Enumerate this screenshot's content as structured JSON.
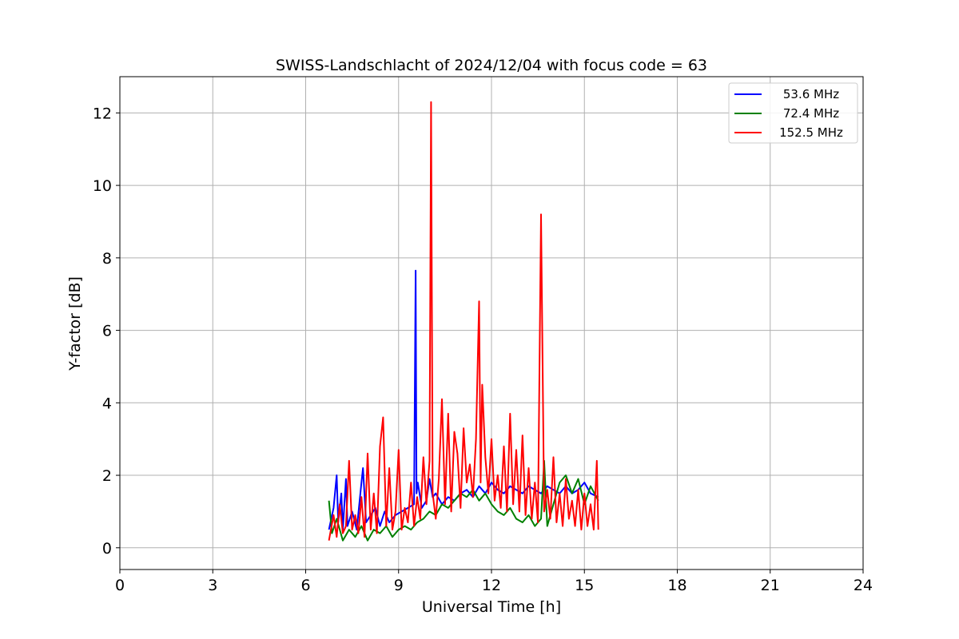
{
  "chart_data": {
    "type": "line",
    "title": "SWISS-Landschlacht of 2024/12/04 with focus code = 63",
    "xlabel": "Universal Time [h]",
    "ylabel": "Y-factor [dB]",
    "xlim": [
      0,
      24
    ],
    "ylim": [
      -0.6,
      13
    ],
    "xticks": [
      0,
      3,
      6,
      9,
      12,
      15,
      18,
      21,
      24
    ],
    "yticks": [
      0,
      2,
      4,
      6,
      8,
      10,
      12
    ],
    "grid": true,
    "legend_position": "top-right",
    "series": [
      {
        "name": "53.6 MHz",
        "color": "#0000ff",
        "x": [
          6.75,
          6.9,
          7.0,
          7.05,
          7.15,
          7.2,
          7.3,
          7.35,
          7.5,
          7.65,
          7.8,
          7.85,
          7.95,
          8.1,
          8.25,
          8.4,
          8.55,
          8.7,
          8.9,
          9.1,
          9.3,
          9.5,
          9.55,
          9.58,
          9.62,
          9.75,
          9.9,
          10.0,
          10.1,
          10.2,
          10.4,
          10.6,
          10.8,
          11.0,
          11.2,
          11.4,
          11.6,
          11.8,
          12.0,
          12.2,
          12.4,
          12.6,
          12.8,
          13.0,
          13.2,
          13.4,
          13.6,
          13.8,
          14.0,
          14.2,
          14.4,
          14.6,
          14.8,
          15.0,
          15.2,
          15.45
        ],
        "y": [
          0.5,
          1.1,
          2.0,
          0.7,
          1.5,
          0.5,
          1.9,
          0.6,
          1.0,
          0.5,
          1.8,
          2.2,
          0.7,
          0.9,
          1.1,
          0.6,
          1.0,
          0.7,
          0.9,
          1.0,
          1.1,
          1.2,
          7.65,
          1.5,
          1.8,
          1.1,
          1.3,
          1.9,
          1.4,
          1.5,
          1.2,
          1.4,
          1.3,
          1.5,
          1.6,
          1.4,
          1.7,
          1.5,
          1.8,
          1.6,
          1.5,
          1.7,
          1.6,
          1.5,
          1.7,
          1.6,
          1.5,
          1.7,
          1.6,
          1.5,
          1.7,
          1.5,
          1.6,
          1.8,
          1.5,
          1.4
        ]
      },
      {
        "name": "72.4 MHz",
        "color": "#008000",
        "x": [
          6.75,
          6.85,
          7.0,
          7.2,
          7.4,
          7.6,
          7.8,
          8.0,
          8.2,
          8.4,
          8.6,
          8.8,
          9.0,
          9.2,
          9.4,
          9.6,
          9.8,
          10.0,
          10.2,
          10.4,
          10.6,
          10.8,
          11.0,
          11.2,
          11.4,
          11.6,
          11.8,
          12.0,
          12.2,
          12.4,
          12.6,
          12.8,
          13.0,
          13.2,
          13.4,
          13.6,
          13.7,
          13.8,
          14.0,
          14.2,
          14.4,
          14.6,
          14.8,
          15.0,
          15.2,
          15.45
        ],
        "y": [
          1.3,
          0.4,
          0.8,
          0.2,
          0.5,
          0.3,
          0.6,
          0.2,
          0.5,
          0.4,
          0.6,
          0.3,
          0.5,
          0.6,
          0.5,
          0.7,
          0.8,
          1.0,
          0.9,
          1.2,
          1.1,
          1.3,
          1.5,
          1.4,
          1.6,
          1.3,
          1.5,
          1.2,
          1.0,
          0.9,
          1.1,
          0.8,
          0.7,
          0.9,
          0.6,
          0.8,
          2.4,
          0.6,
          1.2,
          1.8,
          2.0,
          1.5,
          1.9,
          1.2,
          1.7,
          1.3
        ]
      },
      {
        "name": "152.5 MHz",
        "color": "#ff0000",
        "x": [
          6.75,
          6.9,
          7.0,
          7.1,
          7.2,
          7.3,
          7.4,
          7.5,
          7.6,
          7.7,
          7.8,
          7.9,
          8.0,
          8.1,
          8.2,
          8.3,
          8.4,
          8.5,
          8.6,
          8.7,
          8.8,
          8.9,
          9.0,
          9.1,
          9.2,
          9.3,
          9.4,
          9.5,
          9.6,
          9.7,
          9.8,
          9.9,
          10.0,
          10.05,
          10.1,
          10.2,
          10.3,
          10.4,
          10.5,
          10.6,
          10.7,
          10.8,
          10.9,
          11.0,
          11.1,
          11.2,
          11.3,
          11.4,
          11.5,
          11.6,
          11.65,
          11.7,
          11.8,
          11.9,
          12.0,
          12.1,
          12.2,
          12.3,
          12.4,
          12.5,
          12.6,
          12.7,
          12.8,
          12.9,
          13.0,
          13.1,
          13.2,
          13.3,
          13.4,
          13.5,
          13.6,
          13.7,
          13.8,
          13.9,
          14.0,
          14.1,
          14.2,
          14.3,
          14.4,
          14.5,
          14.6,
          14.7,
          14.8,
          14.9,
          15.0,
          15.1,
          15.2,
          15.3,
          15.4,
          15.45
        ],
        "y": [
          0.2,
          0.9,
          0.3,
          1.2,
          0.4,
          0.6,
          2.4,
          0.5,
          0.9,
          0.4,
          1.4,
          0.3,
          2.6,
          0.5,
          1.5,
          0.4,
          2.8,
          3.6,
          0.6,
          2.2,
          0.5,
          1.0,
          2.7,
          0.5,
          1.1,
          0.7,
          1.8,
          0.6,
          1.4,
          0.8,
          2.5,
          1.2,
          2.4,
          12.3,
          1.5,
          0.8,
          1.9,
          4.1,
          1.2,
          3.7,
          1.0,
          3.2,
          2.6,
          1.1,
          3.3,
          1.8,
          2.3,
          1.4,
          3.0,
          6.8,
          1.8,
          4.5,
          2.5,
          1.5,
          3.0,
          1.3,
          2.0,
          1.1,
          2.8,
          1.0,
          3.7,
          1.2,
          2.7,
          1.0,
          3.1,
          0.9,
          2.2,
          0.8,
          1.8,
          0.7,
          9.2,
          1.0,
          1.6,
          0.8,
          2.5,
          0.7,
          1.5,
          0.6,
          1.9,
          0.8,
          1.3,
          0.6,
          1.6,
          0.5,
          1.5,
          0.6,
          1.2,
          0.5,
          2.4,
          0.5
        ]
      }
    ]
  }
}
